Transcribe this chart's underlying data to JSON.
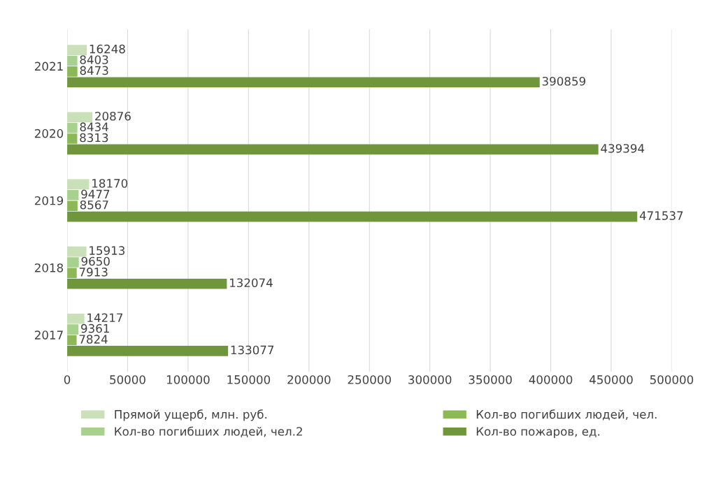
{
  "chart_data": {
    "type": "bar",
    "orientation": "horizontal",
    "categories": [
      "2021",
      "2020",
      "2019",
      "2018",
      "2017"
    ],
    "series": [
      {
        "name": "Прямой ущерб, млн. руб.",
        "color": "#c9e0b8",
        "values": [
          16248,
          20876,
          18170,
          15913,
          14217
        ]
      },
      {
        "name": "Кол-во погибших людей, чел.2",
        "color": "#a9d18e",
        "values": [
          8403,
          8434,
          9477,
          9650,
          9361
        ]
      },
      {
        "name": "Кол-во погибших людей, чел.",
        "color": "#8cb856",
        "values": [
          8473,
          8313,
          8567,
          7913,
          7824
        ]
      },
      {
        "name": "Кол-во пожаров, ед.",
        "color": "#70963c",
        "values": [
          390859,
          439394,
          471537,
          132074,
          133077
        ]
      }
    ],
    "xlim": [
      0,
      500000
    ],
    "xticks": [
      0,
      50000,
      100000,
      150000,
      200000,
      250000,
      300000,
      350000,
      400000,
      450000,
      500000
    ],
    "grid": "x",
    "legend": "bottom",
    "data_labels": true
  }
}
